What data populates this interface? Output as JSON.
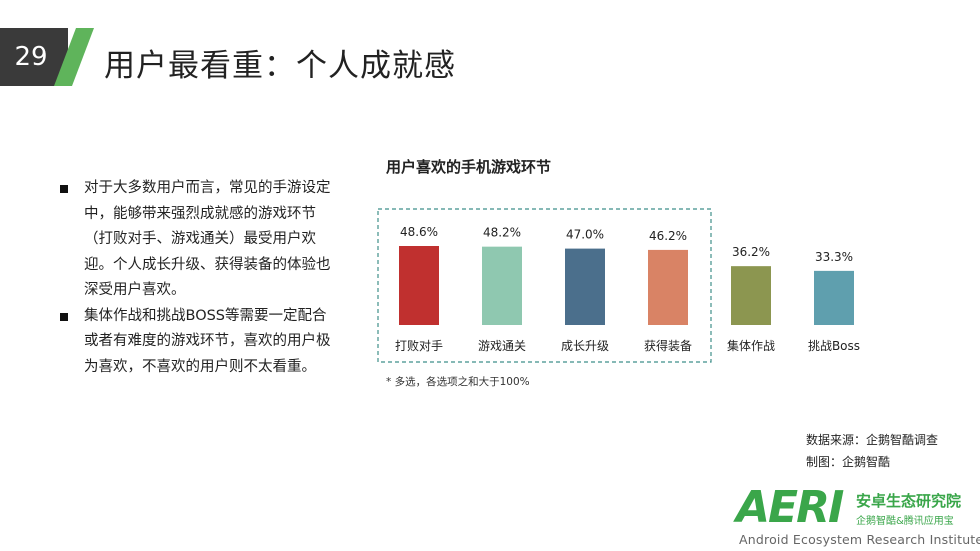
{
  "page": {
    "number": "29",
    "title": "用户最看重：个人成就感"
  },
  "bullets": [
    "对于大多数用户而言，常见的手游设定中，能够带来强烈成就感的游戏环节（打败对手、游戏通关）最受用户欢迎。个人成长升级、获得装备的体验也深受用户喜欢。",
    "集体作战和挑战BOSS等需要一定配合或者有难度的游戏环节，喜欢的用户极为喜欢，不喜欢的用户则不太看重。"
  ],
  "bullet_lines": [
    [
      "对于大多数用户而言，常见的手游设定",
      "中，能够带来强烈成就感的游戏环节",
      "（打败对手、游戏通关）最受用户欢",
      "迎。个人成长升级、获得装备的体验也",
      "深受用户喜欢。"
    ],
    [
      "集体作战和挑战BOSS等需要一定配合",
      "或者有难度的游戏环节，喜欢的用户极",
      "为喜欢，不喜欢的用户则不太看重。"
    ]
  ],
  "chart_data": {
    "type": "bar",
    "title": "用户喜欢的手机游戏环节",
    "categories": [
      "打败对手",
      "游戏通关",
      "成长升级",
      "获得装备",
      "集体作战",
      "挑战Boss"
    ],
    "values": [
      48.6,
      48.2,
      47.0,
      46.2,
      36.2,
      33.3
    ],
    "value_labels": [
      "48.6%",
      "48.2%",
      "47.0%",
      "46.2%",
      "36.2%",
      "33.3%"
    ],
    "colors": [
      "#c0302f",
      "#8fc8b0",
      "#4b6f8c",
      "#d98365",
      "#8c9650",
      "#5f9fae"
    ],
    "highlight_group": [
      "打败对手",
      "游戏通关",
      "成长升级",
      "获得装备"
    ],
    "unit": "%",
    "note": "*   多选，各选项之和大于100%"
  },
  "source": {
    "data_source": "数据来源：企鹅智酷调查",
    "made_by": "制图：企鹅智酷"
  },
  "logo": {
    "mark": "AERI",
    "cn_name": "安卓生态研究院",
    "cn_sub": "企鹅智酷&腾讯应用宝",
    "en_name": "Android Ecosystem Research Institute",
    "color": "#3aa64a"
  }
}
